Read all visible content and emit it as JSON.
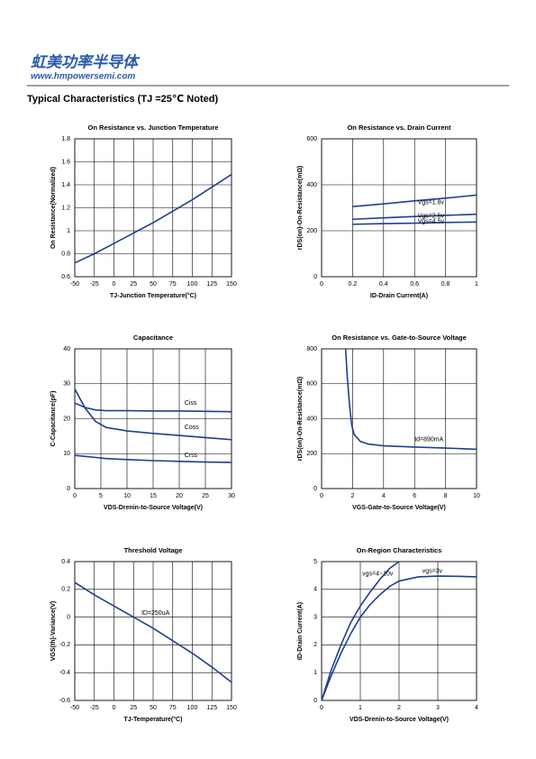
{
  "header": {
    "brand": "虹美功率半导体",
    "url": "www.hmpowersemi.com",
    "section": "Typical Characteristics (TJ =25℃ Noted)"
  },
  "chart_data": [
    {
      "type": "line",
      "title": "On Resistance vs. Junction Temperature",
      "x_label": "TJ-Junction Temperature(°C)",
      "y_label": "On Resistance(Normalized)",
      "x": [
        -50,
        -25,
        0,
        25,
        50,
        75,
        100,
        125,
        150
      ],
      "values": [
        0.72,
        0.8,
        0.89,
        0.98,
        1.07,
        1.17,
        1.27,
        1.38,
        1.49
      ],
      "color": "#1f3f8f",
      "xlim": [
        -50,
        150
      ],
      "ylim": [
        0.6,
        1.8
      ],
      "xticks": [
        -50,
        -25,
        0,
        25,
        50,
        75,
        100,
        125,
        150
      ],
      "yticks": [
        0.6,
        0.8,
        1,
        1.2,
        1.4,
        1.6,
        1.8
      ],
      "grid": true
    },
    {
      "type": "line",
      "title": "On Resistance vs. Drain Current",
      "x_label": "ID-Drain Current(A)",
      "y_label": "rDS(on)-On-Resistance(mΩ)",
      "x": [
        0.2,
        0.4,
        0.6,
        0.8,
        1
      ],
      "series": [
        {
          "name": "Vgs=1.8v",
          "color": "#1f3f8f",
          "values": [
            305,
            317,
            330,
            342,
            355
          ]
        },
        {
          "name": "Vgs=2.5v",
          "color": "#1f3f8f",
          "values": [
            250,
            256,
            262,
            267,
            272
          ]
        },
        {
          "name": "Vgs=4.5v",
          "color": "#1f3f8f",
          "values": [
            228,
            231,
            233,
            236,
            238
          ]
        }
      ],
      "xlim": [
        0,
        1
      ],
      "ylim": [
        0,
        600
      ],
      "xticks": [
        0,
        0.2,
        0.4,
        0.6,
        0.8,
        1
      ],
      "yticks": [
        0,
        200,
        400,
        600
      ],
      "grid": true
    },
    {
      "type": "line",
      "title": "Capacitance",
      "x_label": "VDS-Drenin-to-Source Voltage(V)",
      "y_label": "C-Capacitance(pF)",
      "x": [
        0,
        2,
        4,
        6,
        10,
        15,
        20,
        25,
        30
      ],
      "series": [
        {
          "name": "Ciss",
          "color": "#1f3f8f",
          "values": [
            24.5,
            23.2,
            22.5,
            22.3,
            22.3,
            22.2,
            22.2,
            22.1,
            22
          ]
        },
        {
          "name": "Coss",
          "color": "#1f3f8f",
          "values": [
            28.5,
            23,
            19.2,
            17.5,
            16.5,
            15.8,
            15.2,
            14.6,
            14
          ]
        },
        {
          "name": "Crss",
          "color": "#1f3f8f",
          "values": [
            9.5,
            9.2,
            8.9,
            8.6,
            8.3,
            8,
            7.8,
            7.6,
            7.5
          ]
        }
      ],
      "xlim": [
        0,
        30
      ],
      "ylim": [
        0,
        40
      ],
      "xticks": [
        0,
        5,
        10,
        15,
        20,
        25,
        30
      ],
      "yticks": [
        0,
        10,
        20,
        30,
        40
      ],
      "grid": true
    },
    {
      "type": "line",
      "title": "On Resistance vs. Gate-to-Source Voltage",
      "x_label": "VGS-Gate-to-Source Voltage(V)",
      "y_label": "rDS(on)-On-Resistance(mΩ)",
      "x": [
        1.55,
        1.65,
        1.8,
        1.95,
        2.1,
        2.5,
        3,
        4,
        6,
        8,
        10
      ],
      "values": [
        800,
        650,
        480,
        360,
        310,
        270,
        255,
        245,
        238,
        232,
        225
      ],
      "color": "#1f3f8f",
      "annotations": [
        "Id=890mA"
      ],
      "xlim": [
        0,
        10
      ],
      "ylim": [
        0,
        800
      ],
      "xticks": [
        0,
        2,
        4,
        6,
        8,
        10
      ],
      "yticks": [
        0,
        200,
        400,
        600,
        800
      ],
      "grid": true
    },
    {
      "type": "line",
      "title": "Threshold Voltage",
      "x_label": "TJ-Temperature(°C)",
      "y_label": "VGS(th)-Variance(V)",
      "x": [
        -50,
        -25,
        0,
        25,
        50,
        75,
        100,
        125,
        150
      ],
      "values": [
        0.25,
        0.16,
        0.08,
        0.0,
        -0.08,
        -0.17,
        -0.26,
        -0.36,
        -0.47
      ],
      "color": "#1f3f8f",
      "annotations": [
        "ID=250uA"
      ],
      "xlim": [
        -50,
        150
      ],
      "ylim": [
        -0.6,
        0.4
      ],
      "xticks": [
        -50,
        -25,
        0,
        25,
        50,
        75,
        100,
        125,
        150
      ],
      "yticks": [
        -0.6,
        -0.4,
        -0.2,
        0,
        0.2,
        0.4
      ],
      "grid": true
    },
    {
      "type": "line",
      "title": "On-Region Characteristics",
      "x_label": "VDS-Drenin-to-Source Voltage(V)",
      "y_label": "ID-Drain Current(A)",
      "x": [
        0,
        0.25,
        0.5,
        0.75,
        1,
        1.25,
        1.5,
        1.75,
        2,
        2.5,
        3,
        3.5,
        4
      ],
      "series": [
        {
          "name": "vgs=4~10v",
          "color": "#1f3f8f",
          "values": [
            0,
            1.1,
            2.0,
            2.8,
            3.4,
            3.9,
            4.35,
            4.75,
            5.0,
            null,
            null,
            null,
            null
          ]
        },
        {
          "name": "vgs=3v",
          "color": "#1f3f8f",
          "values": [
            0,
            0.9,
            1.7,
            2.4,
            3.0,
            3.45,
            3.8,
            4.1,
            4.3,
            4.45,
            4.48,
            4.47,
            4.45
          ]
        }
      ],
      "xlim": [
        0,
        4
      ],
      "ylim": [
        0,
        5
      ],
      "xticks": [
        0,
        1,
        2,
        3,
        4
      ],
      "yticks": [
        0,
        1,
        2,
        3,
        4,
        5
      ],
      "grid": true
    }
  ]
}
